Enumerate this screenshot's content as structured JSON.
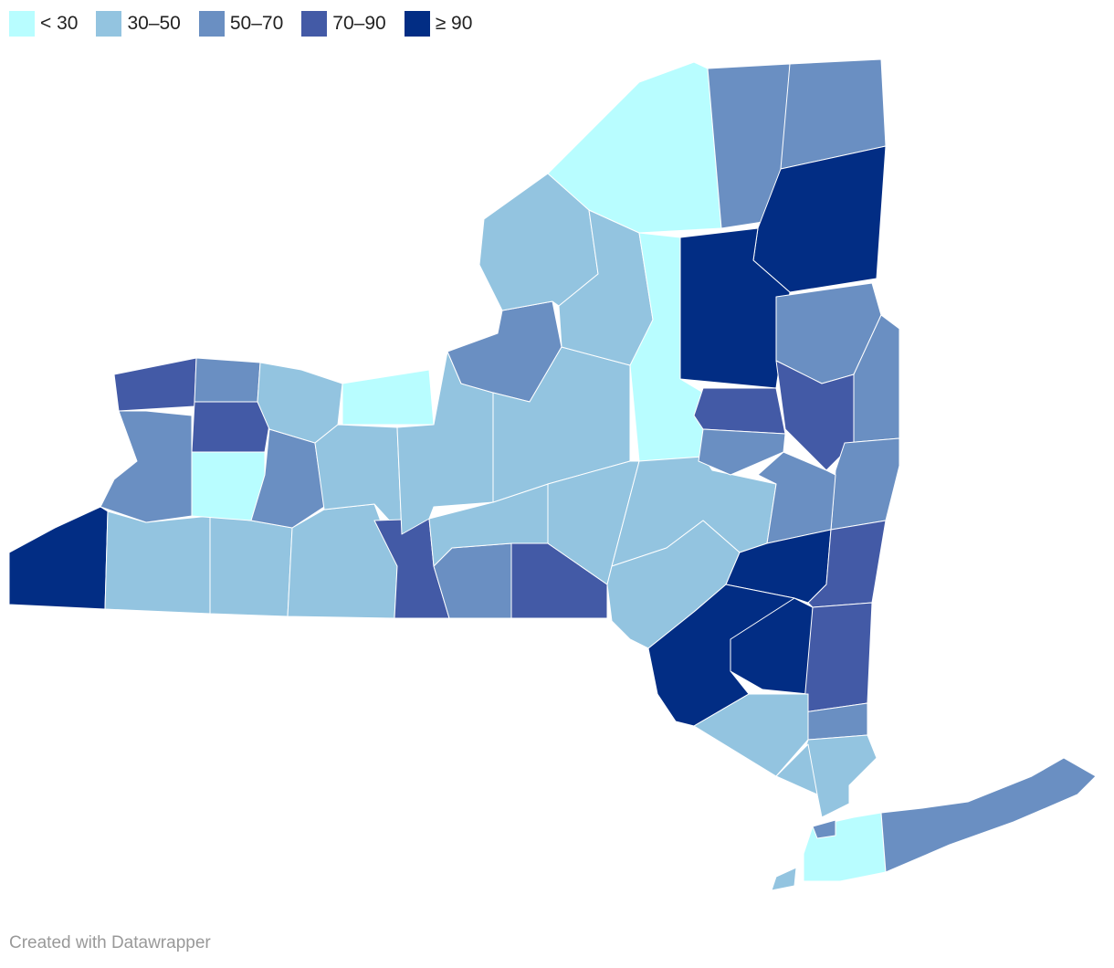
{
  "legend": [
    {
      "label": "< 30",
      "color": "#b8fdff"
    },
    {
      "label": "30–50",
      "color": "#93c4e0"
    },
    {
      "label": "50–70",
      "color": "#6a8fc2"
    },
    {
      "label": "70–90",
      "color": "#435aa6"
    },
    {
      "label": "≥ 90",
      "color": "#022d84"
    }
  ],
  "footer": "Created with Datawrapper"
}
